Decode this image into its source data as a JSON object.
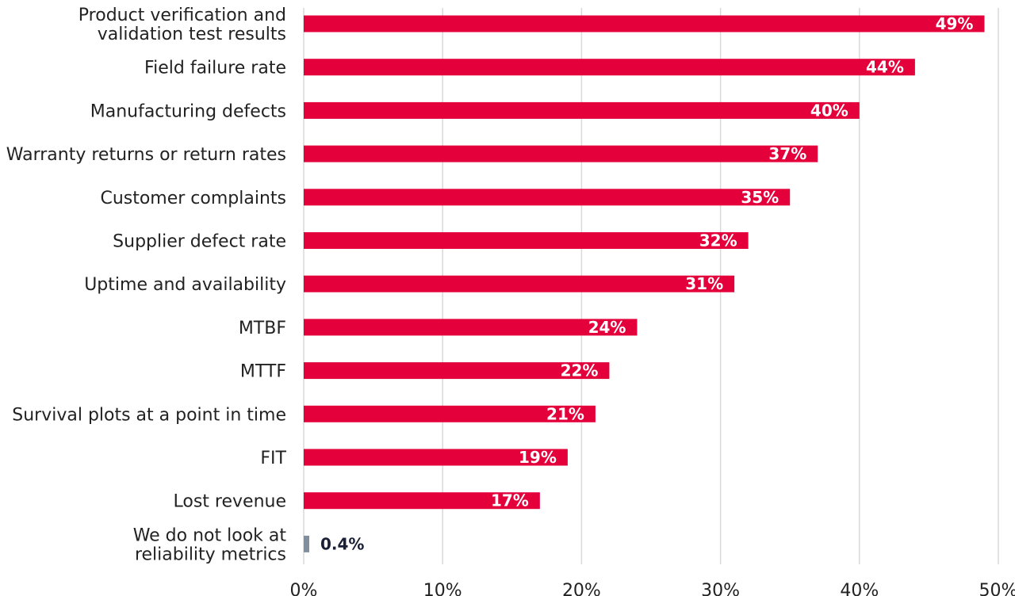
{
  "chart_data": {
    "type": "bar",
    "orientation": "horizontal",
    "categories": [
      [
        "Product verification and",
        "validation test results"
      ],
      [
        "Field failure rate"
      ],
      [
        "Manufacturing defects"
      ],
      [
        "Warranty returns or return rates"
      ],
      [
        "Customer complaints"
      ],
      [
        "Supplier defect rate"
      ],
      [
        "Uptime and availability"
      ],
      [
        "MTBF"
      ],
      [
        "MTTF"
      ],
      [
        "Survival plots at a point in time"
      ],
      [
        "FIT"
      ],
      [
        "Lost revenue"
      ],
      [
        "We do not look at",
        "reliability metrics"
      ]
    ],
    "values": [
      49,
      44,
      40,
      37,
      35,
      32,
      31,
      24,
      22,
      21,
      19,
      17,
      0.4
    ],
    "value_labels": [
      "49%",
      "44%",
      "40%",
      "37%",
      "35%",
      "32%",
      "31%",
      "24%",
      "22%",
      "21%",
      "19%",
      "17%",
      "0.4%"
    ],
    "bar_colors": [
      "#e4003b",
      "#e4003b",
      "#e4003b",
      "#e4003b",
      "#e4003b",
      "#e4003b",
      "#e4003b",
      "#e4003b",
      "#e4003b",
      "#e4003b",
      "#e4003b",
      "#e4003b",
      "#7f8fa0"
    ],
    "x_ticks": [
      0,
      10,
      20,
      30,
      40,
      50
    ],
    "x_tick_labels": [
      "0%",
      "10%",
      "20%",
      "30%",
      "40%",
      "50%"
    ],
    "xlim": [
      0,
      50
    ],
    "grid": "vertical",
    "title": "",
    "xlabel": "",
    "ylabel": ""
  }
}
